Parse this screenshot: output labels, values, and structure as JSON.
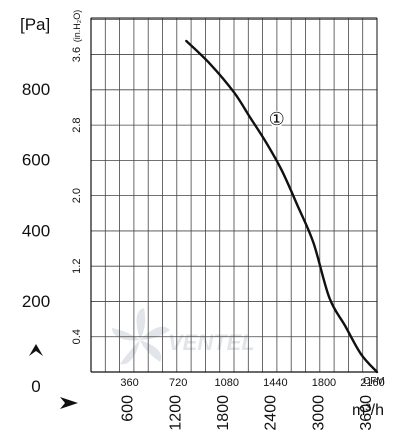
{
  "chart_data": {
    "type": "line",
    "y_unit_pa": "[Pa]",
    "y_unit_inh2o": "(in.H₂O)",
    "x_unit_cfm": "CFM",
    "x_unit_m3h": "m³/h",
    "zero_label": "0",
    "watermark": "VENTEL",
    "pa_ticks": [
      "200",
      "400",
      "600",
      "800"
    ],
    "inh2o_ticks": [
      "0.4",
      "1.2",
      "2.0",
      "2.8",
      "3.6"
    ],
    "cfm_ticks": [
      "360",
      "720",
      "1080",
      "1440",
      "1800",
      "2160"
    ],
    "m3h_ticks": [
      "600",
      "1200",
      "1800",
      "2400",
      "3000",
      "3600"
    ],
    "xlim_m3h": [
      0,
      3600
    ],
    "ylim_pa": [
      0,
      1000
    ],
    "grid": true,
    "series": [
      {
        "name": "①",
        "x": [
          1200,
          1500,
          1800,
          2000,
          2200,
          2400,
          2600,
          2800,
          3000,
          3200,
          3400,
          3600
        ],
        "y": [
          935,
          870,
          790,
          720,
          650,
          570,
          470,
          365,
          210,
          130,
          50,
          0
        ]
      }
    ]
  }
}
